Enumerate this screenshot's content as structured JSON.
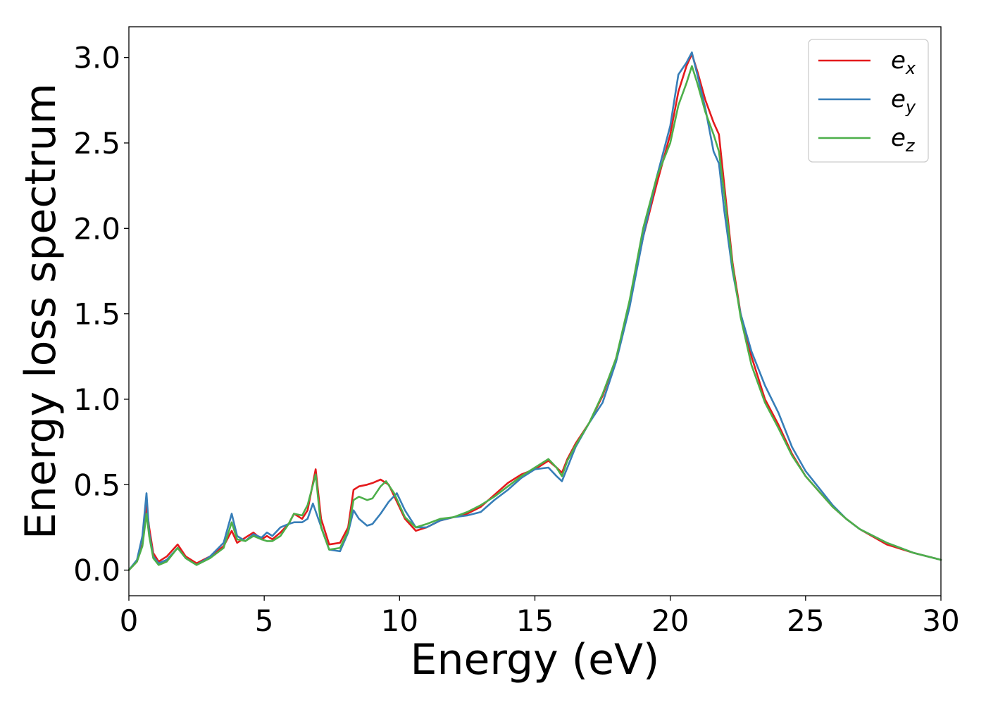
{
  "chart_data": {
    "type": "line",
    "title": "",
    "xlabel": "Energy (eV)",
    "ylabel": "Energy loss spectrum",
    "xlim": [
      0,
      30
    ],
    "ylim": [
      -0.15,
      3.18
    ],
    "xticks": [
      0,
      5,
      10,
      15,
      20,
      25,
      30
    ],
    "xtick_labels": [
      "0",
      "5",
      "10",
      "15",
      "20",
      "25",
      "30"
    ],
    "yticks": [
      0.0,
      0.5,
      1.0,
      1.5,
      2.0,
      2.5,
      3.0
    ],
    "ytick_labels": [
      "0.0",
      "0.5",
      "1.0",
      "1.5",
      "2.0",
      "2.5",
      "3.0"
    ],
    "grid": false,
    "legend_position": "top-right",
    "series": [
      {
        "name": "e",
        "subscript": "x",
        "color": "#e41a1c",
        "points": [
          [
            0,
            0.0
          ],
          [
            0.3,
            0.05
          ],
          [
            0.5,
            0.15
          ],
          [
            0.65,
            0.38
          ],
          [
            0.75,
            0.25
          ],
          [
            0.9,
            0.1
          ],
          [
            1.1,
            0.05
          ],
          [
            1.4,
            0.08
          ],
          [
            1.8,
            0.15
          ],
          [
            2.1,
            0.08
          ],
          [
            2.5,
            0.04
          ],
          [
            3.0,
            0.08
          ],
          [
            3.5,
            0.14
          ],
          [
            3.8,
            0.23
          ],
          [
            4.0,
            0.16
          ],
          [
            4.3,
            0.19
          ],
          [
            4.6,
            0.22
          ],
          [
            4.9,
            0.18
          ],
          [
            5.1,
            0.2
          ],
          [
            5.3,
            0.18
          ],
          [
            5.6,
            0.22
          ],
          [
            5.9,
            0.27
          ],
          [
            6.1,
            0.33
          ],
          [
            6.4,
            0.3
          ],
          [
            6.6,
            0.35
          ],
          [
            6.9,
            0.59
          ],
          [
            7.1,
            0.3
          ],
          [
            7.4,
            0.15
          ],
          [
            7.8,
            0.16
          ],
          [
            8.1,
            0.25
          ],
          [
            8.3,
            0.47
          ],
          [
            8.5,
            0.49
          ],
          [
            8.8,
            0.5
          ],
          [
            9.0,
            0.51
          ],
          [
            9.3,
            0.53
          ],
          [
            9.6,
            0.5
          ],
          [
            9.9,
            0.4
          ],
          [
            10.2,
            0.3
          ],
          [
            10.6,
            0.23
          ],
          [
            11.0,
            0.25
          ],
          [
            11.5,
            0.29
          ],
          [
            12.0,
            0.31
          ],
          [
            12.5,
            0.33
          ],
          [
            13.0,
            0.37
          ],
          [
            13.5,
            0.44
          ],
          [
            14.0,
            0.51
          ],
          [
            14.5,
            0.56
          ],
          [
            15.0,
            0.59
          ],
          [
            15.5,
            0.64
          ],
          [
            15.8,
            0.6
          ],
          [
            16.0,
            0.57
          ],
          [
            16.2,
            0.65
          ],
          [
            16.5,
            0.74
          ],
          [
            17.0,
            0.86
          ],
          [
            17.5,
            1.02
          ],
          [
            18.0,
            1.24
          ],
          [
            18.5,
            1.56
          ],
          [
            19.0,
            1.95
          ],
          [
            19.5,
            2.26
          ],
          [
            20.0,
            2.55
          ],
          [
            20.3,
            2.8
          ],
          [
            20.6,
            2.95
          ],
          [
            20.8,
            3.02
          ],
          [
            21.0,
            2.92
          ],
          [
            21.3,
            2.75
          ],
          [
            21.6,
            2.62
          ],
          [
            21.8,
            2.55
          ],
          [
            22.0,
            2.25
          ],
          [
            22.3,
            1.8
          ],
          [
            22.6,
            1.5
          ],
          [
            23.0,
            1.25
          ],
          [
            23.5,
            1.0
          ],
          [
            24.0,
            0.85
          ],
          [
            24.5,
            0.68
          ],
          [
            25.0,
            0.55
          ],
          [
            25.5,
            0.46
          ],
          [
            26.0,
            0.37
          ],
          [
            26.5,
            0.3
          ],
          [
            27.0,
            0.24
          ],
          [
            28.0,
            0.15
          ],
          [
            29.0,
            0.1
          ],
          [
            30.0,
            0.06
          ]
        ]
      },
      {
        "name": "e",
        "subscript": "y",
        "color": "#377eb8",
        "points": [
          [
            0,
            0.0
          ],
          [
            0.3,
            0.06
          ],
          [
            0.5,
            0.2
          ],
          [
            0.65,
            0.45
          ],
          [
            0.75,
            0.22
          ],
          [
            0.9,
            0.08
          ],
          [
            1.1,
            0.04
          ],
          [
            1.4,
            0.06
          ],
          [
            1.8,
            0.13
          ],
          [
            2.1,
            0.07
          ],
          [
            2.5,
            0.03
          ],
          [
            3.0,
            0.08
          ],
          [
            3.5,
            0.16
          ],
          [
            3.8,
            0.33
          ],
          [
            4.0,
            0.2
          ],
          [
            4.3,
            0.17
          ],
          [
            4.6,
            0.21
          ],
          [
            4.9,
            0.19
          ],
          [
            5.1,
            0.22
          ],
          [
            5.3,
            0.2
          ],
          [
            5.6,
            0.25
          ],
          [
            5.9,
            0.27
          ],
          [
            6.1,
            0.28
          ],
          [
            6.4,
            0.28
          ],
          [
            6.6,
            0.3
          ],
          [
            6.8,
            0.39
          ],
          [
            7.0,
            0.3
          ],
          [
            7.4,
            0.12
          ],
          [
            7.8,
            0.11
          ],
          [
            8.1,
            0.22
          ],
          [
            8.3,
            0.35
          ],
          [
            8.5,
            0.3
          ],
          [
            8.8,
            0.26
          ],
          [
            9.0,
            0.27
          ],
          [
            9.3,
            0.33
          ],
          [
            9.6,
            0.4
          ],
          [
            9.9,
            0.45
          ],
          [
            10.2,
            0.35
          ],
          [
            10.6,
            0.25
          ],
          [
            11.0,
            0.25
          ],
          [
            11.5,
            0.29
          ],
          [
            12.0,
            0.31
          ],
          [
            12.5,
            0.32
          ],
          [
            13.0,
            0.34
          ],
          [
            13.5,
            0.41
          ],
          [
            14.0,
            0.47
          ],
          [
            14.5,
            0.54
          ],
          [
            15.0,
            0.59
          ],
          [
            15.5,
            0.6
          ],
          [
            15.8,
            0.55
          ],
          [
            16.0,
            0.52
          ],
          [
            16.2,
            0.6
          ],
          [
            16.5,
            0.72
          ],
          [
            17.0,
            0.86
          ],
          [
            17.5,
            0.98
          ],
          [
            18.0,
            1.22
          ],
          [
            18.5,
            1.54
          ],
          [
            19.0,
            1.95
          ],
          [
            19.5,
            2.3
          ],
          [
            20.0,
            2.6
          ],
          [
            20.3,
            2.9
          ],
          [
            20.6,
            2.97
          ],
          [
            20.8,
            3.03
          ],
          [
            21.0,
            2.9
          ],
          [
            21.3,
            2.7
          ],
          [
            21.6,
            2.45
          ],
          [
            21.8,
            2.38
          ],
          [
            22.0,
            2.1
          ],
          [
            22.3,
            1.75
          ],
          [
            22.6,
            1.5
          ],
          [
            23.0,
            1.28
          ],
          [
            23.5,
            1.08
          ],
          [
            24.0,
            0.92
          ],
          [
            24.5,
            0.72
          ],
          [
            25.0,
            0.58
          ],
          [
            25.5,
            0.48
          ],
          [
            26.0,
            0.38
          ],
          [
            26.5,
            0.3
          ],
          [
            27.0,
            0.24
          ],
          [
            28.0,
            0.16
          ],
          [
            29.0,
            0.1
          ],
          [
            30.0,
            0.06
          ]
        ]
      },
      {
        "name": "e",
        "subscript": "z",
        "color": "#4daf4a",
        "points": [
          [
            0,
            0.0
          ],
          [
            0.3,
            0.05
          ],
          [
            0.5,
            0.14
          ],
          [
            0.65,
            0.33
          ],
          [
            0.75,
            0.2
          ],
          [
            0.9,
            0.07
          ],
          [
            1.1,
            0.03
          ],
          [
            1.4,
            0.05
          ],
          [
            1.8,
            0.13
          ],
          [
            2.1,
            0.07
          ],
          [
            2.5,
            0.03
          ],
          [
            3.0,
            0.07
          ],
          [
            3.5,
            0.13
          ],
          [
            3.8,
            0.28
          ],
          [
            4.0,
            0.18
          ],
          [
            4.3,
            0.17
          ],
          [
            4.6,
            0.2
          ],
          [
            4.9,
            0.18
          ],
          [
            5.1,
            0.17
          ],
          [
            5.3,
            0.17
          ],
          [
            5.6,
            0.2
          ],
          [
            5.9,
            0.27
          ],
          [
            6.1,
            0.33
          ],
          [
            6.4,
            0.32
          ],
          [
            6.6,
            0.38
          ],
          [
            6.9,
            0.56
          ],
          [
            7.1,
            0.25
          ],
          [
            7.4,
            0.12
          ],
          [
            7.8,
            0.13
          ],
          [
            8.1,
            0.23
          ],
          [
            8.3,
            0.41
          ],
          [
            8.5,
            0.43
          ],
          [
            8.8,
            0.41
          ],
          [
            9.0,
            0.42
          ],
          [
            9.3,
            0.49
          ],
          [
            9.5,
            0.52
          ],
          [
            9.8,
            0.45
          ],
          [
            10.2,
            0.31
          ],
          [
            10.6,
            0.25
          ],
          [
            11.0,
            0.27
          ],
          [
            11.5,
            0.3
          ],
          [
            12.0,
            0.31
          ],
          [
            12.5,
            0.34
          ],
          [
            13.0,
            0.38
          ],
          [
            13.5,
            0.43
          ],
          [
            14.0,
            0.49
          ],
          [
            14.5,
            0.55
          ],
          [
            15.0,
            0.6
          ],
          [
            15.5,
            0.65
          ],
          [
            15.8,
            0.6
          ],
          [
            16.0,
            0.55
          ],
          [
            16.2,
            0.64
          ],
          [
            16.5,
            0.73
          ],
          [
            17.0,
            0.86
          ],
          [
            17.5,
            1.03
          ],
          [
            18.0,
            1.24
          ],
          [
            18.5,
            1.58
          ],
          [
            19.0,
            2.0
          ],
          [
            19.5,
            2.3
          ],
          [
            20.0,
            2.5
          ],
          [
            20.3,
            2.72
          ],
          [
            20.6,
            2.85
          ],
          [
            20.8,
            2.95
          ],
          [
            21.0,
            2.85
          ],
          [
            21.3,
            2.68
          ],
          [
            21.6,
            2.55
          ],
          [
            21.8,
            2.45
          ],
          [
            22.0,
            2.2
          ],
          [
            22.3,
            1.78
          ],
          [
            22.6,
            1.48
          ],
          [
            23.0,
            1.2
          ],
          [
            23.5,
            0.98
          ],
          [
            24.0,
            0.83
          ],
          [
            24.5,
            0.67
          ],
          [
            25.0,
            0.55
          ],
          [
            25.5,
            0.46
          ],
          [
            26.0,
            0.37
          ],
          [
            26.5,
            0.3
          ],
          [
            27.0,
            0.24
          ],
          [
            28.0,
            0.16
          ],
          [
            29.0,
            0.1
          ],
          [
            30.0,
            0.06
          ]
        ]
      }
    ]
  }
}
